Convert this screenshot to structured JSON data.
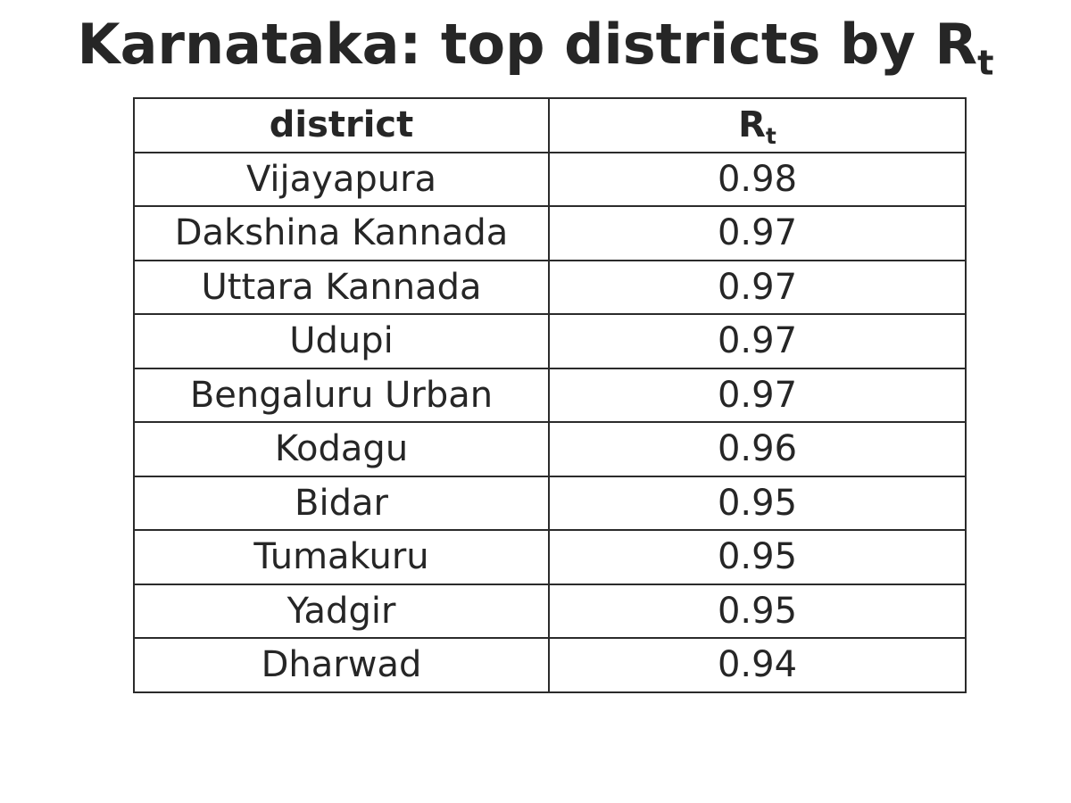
{
  "page": {
    "title_main": "Karnataka: top districts by R",
    "title_sub": "t"
  },
  "chart_data": {
    "type": "table",
    "title": "Karnataka: top districts by Rt",
    "columns": [
      {
        "label": "district",
        "sub": ""
      },
      {
        "label": "R",
        "sub": "t"
      }
    ],
    "rows": [
      {
        "district": "Vijayapura",
        "rt": "0.98"
      },
      {
        "district": "Dakshina Kannada",
        "rt": "0.97"
      },
      {
        "district": "Uttara Kannada",
        "rt": "0.97"
      },
      {
        "district": "Udupi",
        "rt": "0.97"
      },
      {
        "district": "Bengaluru Urban",
        "rt": "0.97"
      },
      {
        "district": "Kodagu",
        "rt": "0.96"
      },
      {
        "district": "Bidar",
        "rt": "0.95"
      },
      {
        "district": "Tumakuru",
        "rt": "0.95"
      },
      {
        "district": "Yadgir",
        "rt": "0.95"
      },
      {
        "district": "Dharwad",
        "rt": "0.94"
      }
    ]
  }
}
